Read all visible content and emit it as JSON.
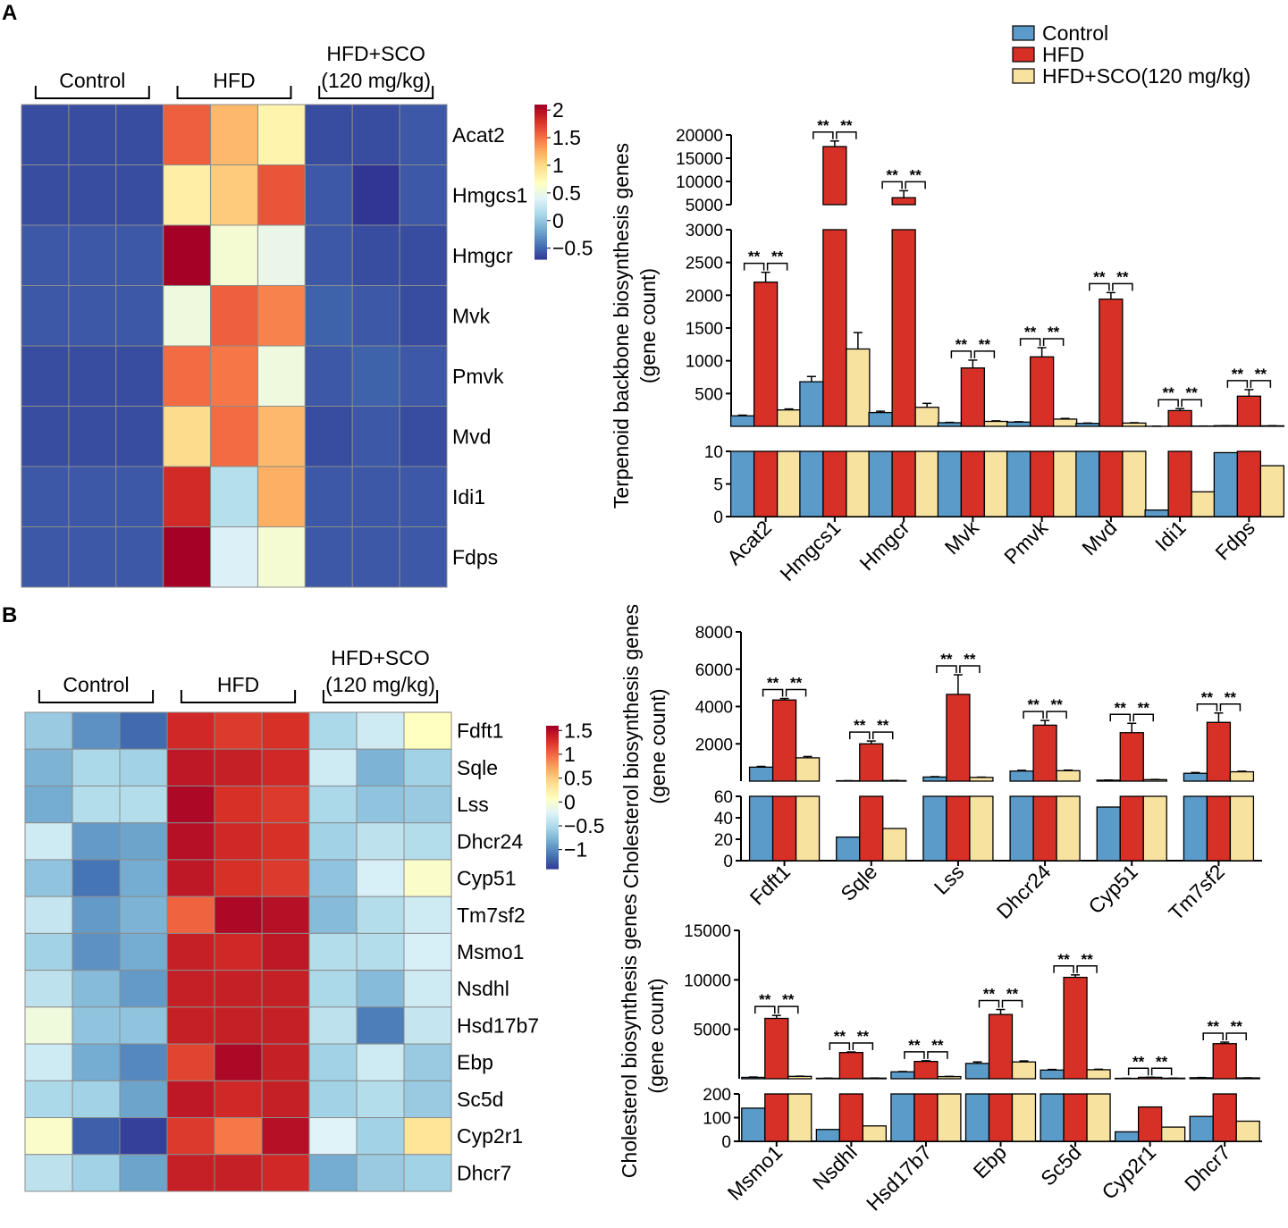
{
  "panel_labels": [
    "A",
    "B"
  ],
  "legend": {
    "items": [
      {
        "name": "Control",
        "color": "#5b9bc9"
      },
      {
        "name": "HFD",
        "color": "#d63027"
      },
      {
        "name": "HFD+SCO(120 mg/kg)",
        "color": "#f8e2a0"
      }
    ]
  },
  "colors": {
    "border": "#8c8c8c",
    "sep": "#ffffff"
  },
  "heatmapA": {
    "groups": [
      {
        "lines": [
          "Control"
        ]
      },
      {
        "lines": [
          "HFD"
        ]
      },
      {
        "lines": [
          "HFD+SCO",
          "(120 mg/kg)"
        ]
      }
    ],
    "genes": [
      "Acat2",
      "Hmgcs1",
      "Hmgcr",
      "Mvk",
      "Pmvk",
      "Mvd",
      "Idi1",
      "Fdps"
    ],
    "colorbar": {
      "min": -0.7,
      "max": 2.1,
      "ticks": [
        2,
        1.5,
        1,
        0.5,
        0,
        -0.5
      ],
      "tick_labels": [
        "2",
        "1.5",
        "1",
        "0.5",
        "0",
        "−0.5"
      ]
    },
    "values": [
      [
        -0.6,
        -0.6,
        -0.6,
        1.6,
        1.2,
        0.8,
        -0.6,
        -0.6,
        -0.55
      ],
      [
        -0.6,
        -0.6,
        -0.6,
        0.85,
        1.1,
        1.65,
        -0.55,
        -0.7,
        -0.55
      ],
      [
        -0.55,
        -0.55,
        -0.55,
        2.1,
        0.6,
        0.5,
        -0.55,
        -0.6,
        -0.6
      ],
      [
        -0.55,
        -0.55,
        -0.55,
        0.55,
        1.6,
        1.45,
        -0.5,
        -0.55,
        -0.6
      ],
      [
        -0.6,
        -0.6,
        -0.6,
        1.55,
        1.5,
        0.55,
        -0.55,
        -0.5,
        -0.55
      ],
      [
        -0.6,
        -0.6,
        -0.6,
        1.0,
        1.55,
        1.2,
        -0.6,
        -0.55,
        -0.6
      ],
      [
        -0.55,
        -0.55,
        -0.55,
        1.85,
        0.2,
        1.25,
        -0.55,
        -0.55,
        -0.55
      ],
      [
        -0.55,
        -0.55,
        -0.55,
        2.1,
        0.4,
        0.6,
        -0.55,
        -0.55,
        -0.55
      ]
    ]
  },
  "heatmapB": {
    "groups": [
      {
        "lines": [
          "Control"
        ]
      },
      {
        "lines": [
          "HFD"
        ]
      },
      {
        "lines": [
          "HFD+SCO",
          "(120 mg/kg)"
        ]
      }
    ],
    "genes": [
      "Fdft1",
      "Sqle",
      "Lss",
      "Dhcr24",
      "Cyp51",
      "Tm7sf2",
      "Msmo1",
      "Nsdhl",
      "Hsd17b7",
      "Ebp",
      "Sc5d",
      "Cyp2r1",
      "Dhcr7"
    ],
    "colorbar": {
      "min": -1.4,
      "max": 1.6,
      "ticks": [
        1.5,
        1,
        0.5,
        0,
        -0.5,
        -1
      ],
      "tick_labels": [
        "1.5",
        "1",
        "0.5",
        "0",
        "−0.5",
        "−1"
      ]
    },
    "values": [
      [
        -0.6,
        -0.95,
        -1.15,
        1.35,
        1.25,
        1.3,
        -0.5,
        -0.3,
        0.1
      ],
      [
        -0.75,
        -0.5,
        -0.55,
        1.45,
        1.4,
        1.35,
        -0.3,
        -0.75,
        -0.55
      ],
      [
        -0.8,
        -0.45,
        -0.45,
        1.55,
        1.3,
        1.25,
        -0.5,
        -0.65,
        -0.6
      ],
      [
        -0.3,
        -0.9,
        -0.85,
        1.5,
        1.35,
        1.3,
        -0.55,
        -0.4,
        -0.45
      ],
      [
        -0.65,
        -1.1,
        -0.8,
        1.45,
        1.3,
        1.25,
        -0.65,
        -0.25,
        0.05
      ],
      [
        -0.35,
        -0.9,
        -0.75,
        1.05,
        1.55,
        1.5,
        -0.7,
        -0.45,
        -0.3
      ],
      [
        -0.55,
        -0.95,
        -0.8,
        1.4,
        1.35,
        1.45,
        -0.45,
        -0.45,
        -0.25
      ],
      [
        -0.4,
        -0.7,
        -0.9,
        1.4,
        1.4,
        1.4,
        -0.5,
        -0.7,
        -0.3
      ],
      [
        -0.05,
        -0.65,
        -0.65,
        1.4,
        1.4,
        1.4,
        -0.4,
        -1.05,
        -0.35
      ],
      [
        -0.3,
        -0.8,
        -1.0,
        1.2,
        1.55,
        1.4,
        -0.55,
        -0.3,
        -0.6
      ],
      [
        -0.5,
        -0.55,
        -0.85,
        1.45,
        1.35,
        1.4,
        -0.55,
        -0.45,
        -0.6
      ],
      [
        0.05,
        -1.2,
        -1.35,
        1.25,
        0.95,
        1.5,
        -0.2,
        -0.55,
        0.35
      ],
      [
        -0.4,
        -0.55,
        -0.85,
        1.4,
        1.4,
        1.35,
        -0.8,
        -0.6,
        -0.55
      ]
    ]
  },
  "chart_data": [
    {
      "type": "bar",
      "id": "A-bar",
      "title": "",
      "ylabel": [
        "Terpenoid backbone biosynthesis genes",
        "(gene count)"
      ],
      "categories": [
        "Acat2",
        "Hmgcs1",
        "Hmgcr",
        "Mvk",
        "Pmvk",
        "Mvd",
        "Idi1",
        "Fdps"
      ],
      "series": [
        {
          "name": "Control",
          "values": [
            160,
            680,
            210,
            55,
            65,
            45,
            1,
            9.8
          ],
          "errors": [
            10,
            80,
            20,
            5,
            5,
            5,
            0.8,
            0.2
          ]
        },
        {
          "name": "HFD",
          "values": [
            2200,
            17500,
            6500,
            890,
            1060,
            1940,
            240,
            460
          ],
          "errors": [
            150,
            1200,
            1500,
            120,
            140,
            100,
            30,
            100
          ]
        },
        {
          "name": "HFD+SCO(120 mg/kg)",
          "values": [
            250,
            1180,
            290,
            75,
            110,
            50,
            3.8,
            7.8
          ],
          "errors": [
            15,
            250,
            60,
            8,
            10,
            5,
            0.5,
            1.6
          ]
        }
      ],
      "sig": "**",
      "y_segments": [
        {
          "range": [
            0,
            10
          ],
          "ticks": [
            0,
            5,
            10
          ]
        },
        {
          "range": [
            0,
            3000
          ],
          "ticks": [
            500,
            1000,
            1500,
            2000,
            2500,
            3000
          ]
        },
        {
          "range": [
            5000,
            20000
          ],
          "ticks": [
            5000,
            10000,
            15000,
            20000
          ]
        }
      ],
      "segment_labels": [
        [
          "0",
          "5",
          "10"
        ],
        [
          "500",
          "1000",
          "1500",
          "2000",
          "2500",
          "3000"
        ],
        [
          "5000",
          "10000",
          "15000",
          "20000"
        ]
      ]
    },
    {
      "type": "bar",
      "id": "B-bar-1",
      "title": "",
      "ylabel": [
        "Cholesterol biosynthesis genes",
        "(gene count)"
      ],
      "categories": [
        "Fdft1",
        "Sqle",
        "Lss",
        "Dhcr24",
        "Cyp51",
        "Tm7sf2"
      ],
      "series": [
        {
          "name": "Control",
          "values": [
            750,
            22,
            220,
            540,
            50,
            420
          ],
          "errors": [
            40,
            2,
            20,
            40,
            10,
            40
          ]
        },
        {
          "name": "HFD",
          "values": [
            4350,
            2000,
            4650,
            3000,
            2600,
            3150
          ],
          "errors": [
            80,
            150,
            1050,
            250,
            500,
            500
          ]
        },
        {
          "name": "HFD+SCO(120 mg/kg)",
          "values": [
            1250,
            30,
            200,
            560,
            80,
            500
          ],
          "errors": [
            70,
            8,
            15,
            30,
            10,
            30
          ]
        }
      ],
      "sig": "**",
      "y_segments": [
        {
          "range": [
            0,
            60
          ],
          "ticks": [
            0,
            20,
            40,
            60
          ]
        },
        {
          "range": [
            0,
            8000
          ],
          "ticks": [
            2000,
            4000,
            6000,
            8000
          ]
        }
      ],
      "segment_labels": [
        [
          "0",
          "20",
          "40",
          "60"
        ],
        [
          "2000",
          "4000",
          "6000",
          "8000"
        ]
      ]
    },
    {
      "type": "bar",
      "id": "B-bar-2",
      "title": "",
      "ylabel": [
        "Cholesterol biosynthesis genes",
        "(gene count)"
      ],
      "categories": [
        "Msmo1",
        "Nsdhl",
        "Hsd17b7",
        "Ebp",
        "Sc5d",
        "Cyp2r1",
        "Dhcr7"
      ],
      "series": [
        {
          "name": "Control",
          "values": [
            140,
            50,
            700,
            1550,
            880,
            40,
            105
          ],
          "errors": [
            35,
            10,
            30,
            150,
            60,
            8,
            20
          ]
        },
        {
          "name": "HFD",
          "values": [
            6100,
            2650,
            1750,
            6500,
            10250,
            145,
            3550
          ],
          "errors": [
            300,
            60,
            70,
            500,
            250,
            10,
            150
          ]
        },
        {
          "name": "HFD+SCO(120 mg/kg)",
          "values": [
            240,
            65,
            220,
            1700,
            910,
            60,
            85
          ],
          "errors": [
            20,
            10,
            20,
            100,
            50,
            5,
            8
          ]
        }
      ],
      "sig": "**",
      "y_segments": [
        {
          "range": [
            0,
            200
          ],
          "ticks": [
            0,
            100,
            200
          ]
        },
        {
          "range": [
            0,
            15000
          ],
          "ticks": [
            5000,
            10000,
            15000
          ]
        }
      ],
      "segment_labels": [
        [
          "0",
          "100",
          "200"
        ],
        [
          "5000",
          "10000",
          "15000"
        ]
      ]
    }
  ]
}
